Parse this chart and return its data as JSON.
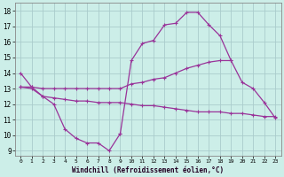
{
  "background_color": "#cceee8",
  "grid_color": "#aacccc",
  "line_color": "#993399",
  "xlabel": "Windchill (Refroidissement éolien,°C)",
  "xlim": [
    -0.5,
    23.5
  ],
  "ylim": [
    8.7,
    18.5
  ],
  "yticks": [
    9,
    10,
    11,
    12,
    13,
    14,
    15,
    16,
    17,
    18
  ],
  "xticks": [
    0,
    1,
    2,
    3,
    4,
    5,
    6,
    7,
    8,
    9,
    10,
    11,
    12,
    13,
    14,
    15,
    16,
    17,
    18,
    19,
    20,
    21,
    22,
    23
  ],
  "series": [
    {
      "x": [
        0,
        1,
        2,
        3,
        4,
        5,
        6,
        7,
        8,
        9
      ],
      "y": [
        14.0,
        13.1,
        12.5,
        12.0,
        10.4,
        9.8,
        9.5,
        9.5,
        9.0,
        10.1
      ]
    },
    {
      "x": [
        9,
        10,
        11,
        12,
        13,
        14,
        15,
        16,
        17,
        18,
        19
      ],
      "y": [
        10.1,
        14.8,
        15.9,
        16.1,
        17.1,
        17.2,
        17.9,
        17.9,
        17.1,
        16.4,
        14.8
      ]
    },
    {
      "x": [
        0,
        1,
        2,
        3,
        4,
        5,
        6,
        7,
        8,
        9,
        10,
        11,
        12,
        13,
        14,
        15,
        16,
        17,
        18,
        19,
        20,
        21,
        22,
        23
      ],
      "y": [
        13.1,
        13.0,
        12.5,
        12.4,
        12.3,
        12.2,
        12.2,
        12.1,
        12.1,
        12.1,
        12.0,
        11.9,
        11.9,
        11.8,
        11.7,
        11.6,
        11.5,
        11.5,
        11.5,
        11.4,
        11.4,
        11.3,
        11.2,
        11.2
      ]
    },
    {
      "x": [
        0,
        1,
        2,
        3,
        4,
        5,
        6,
        7,
        8,
        9,
        10,
        11,
        12,
        13,
        14,
        15,
        16,
        17,
        18,
        19,
        20,
        21,
        22,
        23
      ],
      "y": [
        13.1,
        13.1,
        13.0,
        13.0,
        13.0,
        13.0,
        13.0,
        13.0,
        13.0,
        13.0,
        13.3,
        13.4,
        13.6,
        13.7,
        14.0,
        14.3,
        14.5,
        14.7,
        14.8,
        14.8,
        13.4,
        13.0,
        12.1,
        11.1
      ]
    }
  ]
}
